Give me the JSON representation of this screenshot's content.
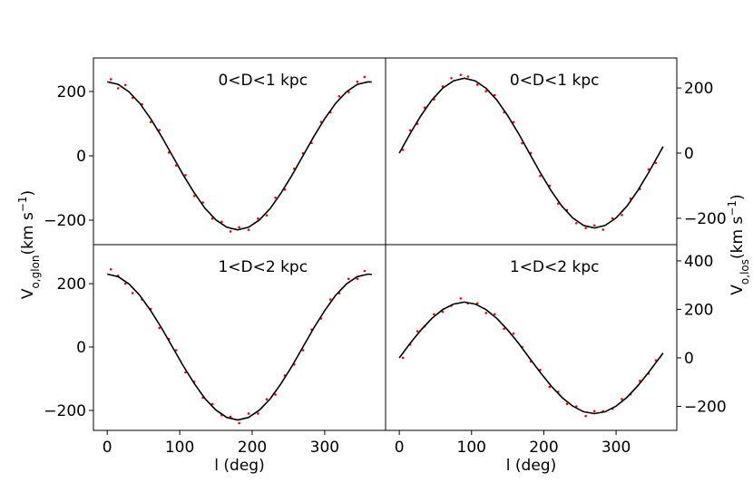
{
  "chart_data": [
    {
      "type": "scatter",
      "annotation": "0<D<1 kpc",
      "color": "#ff0000",
      "x": [
        5,
        15,
        25,
        35,
        48,
        60,
        72,
        85,
        95,
        108,
        120,
        132,
        145,
        158,
        170,
        182,
        195,
        208,
        220,
        232,
        245,
        258,
        270,
        282,
        295,
        308,
        320,
        333,
        345,
        355
      ],
      "values": [
        238,
        210,
        220,
        180,
        160,
        105,
        80,
        10,
        -30,
        -60,
        -125,
        -145,
        -195,
        -205,
        -235,
        -222,
        -230,
        -195,
        -185,
        -130,
        -105,
        -40,
        8,
        40,
        105,
        135,
        185,
        198,
        230,
        245
      ],
      "line": {
        "color": "#000000",
        "x": [
          0,
          15,
          30,
          45,
          60,
          75,
          90,
          105,
          120,
          135,
          150,
          165,
          180,
          195,
          210,
          225,
          240,
          255,
          270,
          285,
          300,
          315,
          330,
          345,
          360,
          365
        ],
        "values": [
          230,
          222,
          199,
          163,
          115,
          60,
          0,
          -60,
          -115,
          -163,
          -199,
          -222,
          -230,
          -222,
          -199,
          -163,
          -115,
          -60,
          0,
          60,
          115,
          163,
          199,
          222,
          230,
          229
        ]
      },
      "xlim": [
        -19,
        384
      ],
      "ylim": [
        -276,
        304
      ],
      "xticks": [
        0,
        100,
        200,
        300
      ],
      "yticks": [
        {
          "value": -200,
          "label": "−200"
        },
        0,
        200
      ],
      "y_side": "left",
      "show_xticklabels": false,
      "ylabel": [
        {
          "text": "V"
        },
        {
          "text": "o,glon",
          "shift": "sub"
        },
        {
          "text": "(km s"
        },
        {
          "text": "−1",
          "shift": "super"
        },
        {
          "text": ")"
        }
      ]
    },
    {
      "type": "scatter",
      "annotation": "0<D<1 kpc",
      "color": "#ff0000",
      "x": [
        5,
        15,
        25,
        35,
        48,
        60,
        72,
        85,
        95,
        108,
        120,
        132,
        145,
        158,
        170,
        182,
        195,
        208,
        220,
        232,
        245,
        258,
        270,
        282,
        295,
        308,
        320,
        333,
        345,
        355
      ],
      "values": [
        10,
        70,
        90,
        140,
        165,
        205,
        230,
        240,
        235,
        210,
        190,
        178,
        125,
        95,
        30,
        0,
        -70,
        -100,
        -155,
        -175,
        -215,
        -230,
        -222,
        -235,
        -200,
        -190,
        -140,
        -110,
        -50,
        -30
      ],
      "line": {
        "color": "#000000",
        "x": [
          0,
          15,
          30,
          45,
          60,
          75,
          90,
          105,
          120,
          135,
          150,
          165,
          180,
          195,
          210,
          225,
          240,
          255,
          270,
          285,
          300,
          315,
          330,
          345,
          360,
          365
        ],
        "values": [
          0,
          60,
          115,
          163,
          199,
          222,
          230,
          222,
          199,
          163,
          115,
          60,
          0,
          -60,
          -115,
          -163,
          -199,
          -222,
          -230,
          -222,
          -199,
          -163,
          -115,
          -60,
          0,
          20
        ]
      },
      "xlim": [
        -19,
        384
      ],
      "ylim": [
        -281,
        292
      ],
      "xticks": [
        0,
        100,
        200,
        300
      ],
      "yticks": [
        {
          "value": -200,
          "label": "−200"
        },
        0,
        200
      ],
      "y_side": "right",
      "show_xticklabels": false,
      "ylabel": [
        {
          "text": "V"
        },
        {
          "text": "o,los",
          "shift": "sub"
        },
        {
          "text": "(km s"
        },
        {
          "text": "−1",
          "shift": "super"
        },
        {
          "text": ")"
        }
      ]
    },
    {
      "type": "scatter",
      "annotation": "1<D<2 kpc",
      "color": "#ff0000",
      "x": [
        5,
        15,
        25,
        35,
        48,
        60,
        72,
        85,
        95,
        108,
        120,
        132,
        145,
        158,
        170,
        182,
        195,
        208,
        220,
        232,
        245,
        258,
        270,
        282,
        295,
        308,
        320,
        333,
        345,
        355
      ],
      "values": [
        245,
        225,
        200,
        170,
        150,
        120,
        60,
        25,
        -10,
        -80,
        -110,
        -160,
        -180,
        -215,
        -220,
        -240,
        -210,
        -210,
        -165,
        -150,
        -90,
        -55,
        -10,
        55,
        90,
        150,
        170,
        215,
        215,
        240
      ],
      "line": {
        "color": "#000000",
        "x": [
          0,
          15,
          30,
          45,
          60,
          75,
          90,
          105,
          120,
          135,
          150,
          165,
          180,
          195,
          210,
          225,
          240,
          255,
          270,
          285,
          300,
          315,
          330,
          345,
          360,
          365
        ],
        "values": [
          230,
          222,
          199,
          163,
          115,
          60,
          0,
          -60,
          -115,
          -163,
          -199,
          -222,
          -230,
          -222,
          -199,
          -163,
          -115,
          -60,
          0,
          60,
          115,
          163,
          199,
          222,
          230,
          229
        ]
      },
      "xlim": [
        -19,
        384
      ],
      "ylim": [
        -263,
        323
      ],
      "xticks": [
        0,
        100,
        200,
        300
      ],
      "yticks": [
        {
          "value": -200,
          "label": "−200"
        },
        0,
        200
      ],
      "y_side": "left",
      "show_xticklabels": true,
      "xlabel": "l (deg)"
    },
    {
      "type": "scatter",
      "annotation": "1<D<2 kpc",
      "color": "#ff0000",
      "x": [
        5,
        15,
        25,
        35,
        48,
        60,
        72,
        85,
        95,
        108,
        120,
        132,
        145,
        158,
        170,
        182,
        195,
        208,
        220,
        232,
        245,
        258,
        270,
        282,
        295,
        308,
        320,
        333,
        345,
        355
      ],
      "values": [
        0,
        55,
        110,
        130,
        180,
        190,
        215,
        245,
        225,
        225,
        185,
        180,
        120,
        100,
        45,
        -15,
        -50,
        -120,
        -140,
        -190,
        -200,
        -240,
        -220,
        -220,
        -210,
        -170,
        -150,
        -95,
        -65,
        -10
      ],
      "line": {
        "color": "#000000",
        "x": [
          0,
          15,
          30,
          45,
          60,
          75,
          90,
          105,
          120,
          135,
          150,
          165,
          180,
          195,
          210,
          225,
          240,
          255,
          270,
          285,
          300,
          315,
          330,
          345,
          360,
          365
        ],
        "values": [
          0,
          60,
          115,
          163,
          199,
          222,
          230,
          222,
          199,
          163,
          115,
          60,
          0,
          -60,
          -115,
          -163,
          -199,
          -222,
          -230,
          -222,
          -199,
          -163,
          -115,
          -60,
          0,
          20
        ]
      },
      "xlim": [
        -19,
        384
      ],
      "ylim": [
        -299,
        467
      ],
      "xticks": [
        0,
        100,
        200,
        300
      ],
      "yticks": [
        {
          "value": -200,
          "label": "−200"
        },
        0,
        200,
        400
      ],
      "y_side": "right",
      "show_xticklabels": true,
      "xlabel": "l (deg)"
    }
  ]
}
